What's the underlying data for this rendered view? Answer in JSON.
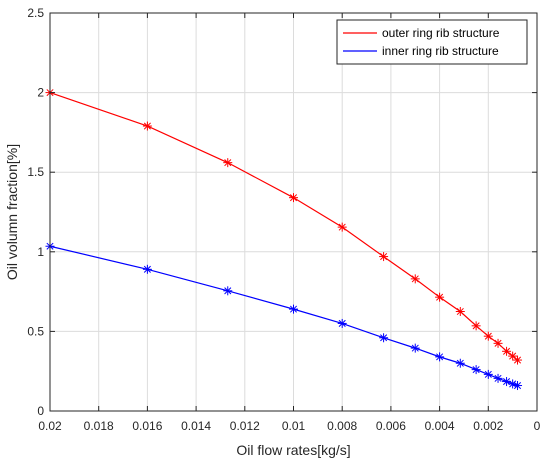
{
  "chart_data": {
    "type": "line",
    "title": "",
    "xlabel": "Oil flow rates[kg/s]",
    "ylabel": "Oil volumn fraction[%]",
    "xlim": [
      0.02,
      0
    ],
    "ylim": [
      0,
      2.5
    ],
    "x_reversed": true,
    "grid": true,
    "legend_position": "top-right",
    "x_ticks": [
      0.02,
      0.018,
      0.016,
      0.014,
      0.012,
      0.01,
      0.008,
      0.006,
      0.004,
      0.002,
      0
    ],
    "x_tick_labels": [
      "0.02",
      "0.018",
      "0.016",
      "0.014",
      "0.012",
      "0.01",
      "0.008",
      "0.006",
      "0.004",
      "0.002",
      "0"
    ],
    "y_ticks": [
      0,
      0.5,
      1,
      1.5,
      2,
      2.5
    ],
    "y_tick_labels": [
      "0",
      "0.5",
      "1",
      "1.5",
      "2",
      "2.5"
    ],
    "series": [
      {
        "name": "outer ring rib structure",
        "color": "#ff0000",
        "marker": "asterisk",
        "x": [
          0.02,
          0.016,
          0.0127,
          0.01,
          0.008,
          0.0063,
          0.005,
          0.004,
          0.00315,
          0.0025,
          0.002,
          0.0016,
          0.00125,
          0.001,
          0.0008
        ],
        "y": [
          2.0,
          1.79,
          1.56,
          1.34,
          1.155,
          0.97,
          0.83,
          0.715,
          0.625,
          0.535,
          0.47,
          0.425,
          0.375,
          0.345,
          0.32
        ]
      },
      {
        "name": "inner ring rib structure",
        "color": "#0000ff",
        "marker": "asterisk",
        "x": [
          0.02,
          0.016,
          0.0127,
          0.01,
          0.008,
          0.0063,
          0.005,
          0.004,
          0.00315,
          0.0025,
          0.002,
          0.0016,
          0.00125,
          0.001,
          0.0008
        ],
        "y": [
          1.035,
          0.89,
          0.755,
          0.64,
          0.55,
          0.46,
          0.395,
          0.34,
          0.3,
          0.26,
          0.23,
          0.205,
          0.185,
          0.17,
          0.16
        ]
      }
    ]
  }
}
